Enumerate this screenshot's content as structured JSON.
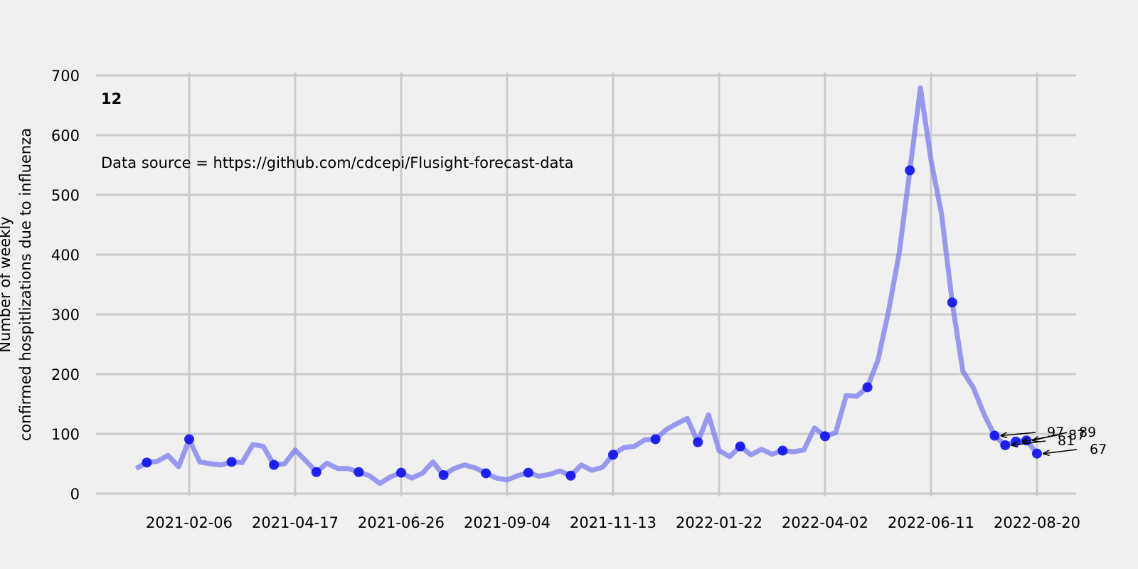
{
  "chart_data": {
    "type": "line",
    "panel_label": "12",
    "annotation": "Data source = https://github.com/cdcepi/Flusight-forecast-data",
    "ylabel_line1": "Number of weekly",
    "ylabel_line2": "confirmed hospitlizations due to influenza",
    "xlabel": "",
    "ylim": [
      0,
      700
    ],
    "yticks": [
      0,
      100,
      200,
      300,
      400,
      500,
      600,
      700
    ],
    "xticks": [
      "2021-02-06",
      "2021-04-17",
      "2021-06-26",
      "2021-09-04",
      "2021-11-13",
      "2022-01-22",
      "2022-04-02",
      "2022-06-11",
      "2022-08-20"
    ],
    "grid": true,
    "colors": {
      "line": "#7b7bf0",
      "marker": "#1010f0",
      "grid": "#cbcbcb",
      "background": "#f0f0f0"
    },
    "series": [
      {
        "values": [
          [
            "2021-01-02",
            42
          ],
          [
            "2021-01-09",
            52
          ],
          [
            "2021-01-16",
            54
          ],
          [
            "2021-01-23",
            64
          ],
          [
            "2021-01-30",
            45
          ],
          [
            "2021-02-06",
            91
          ],
          [
            "2021-02-13",
            53
          ],
          [
            "2021-02-20",
            50
          ],
          [
            "2021-02-27",
            48
          ],
          [
            "2021-03-06",
            53
          ],
          [
            "2021-03-13",
            52
          ],
          [
            "2021-03-20",
            82
          ],
          [
            "2021-03-27",
            79
          ],
          [
            "2021-04-03",
            48
          ],
          [
            "2021-04-10",
            50
          ],
          [
            "2021-04-17",
            73
          ],
          [
            "2021-04-24",
            55
          ],
          [
            "2021-05-01",
            36
          ],
          [
            "2021-05-08",
            51
          ],
          [
            "2021-05-15",
            42
          ],
          [
            "2021-05-22",
            42
          ],
          [
            "2021-05-29",
            36
          ],
          [
            "2021-06-05",
            30
          ],
          [
            "2021-06-12",
            17
          ],
          [
            "2021-06-19",
            28
          ],
          [
            "2021-06-26",
            35
          ],
          [
            "2021-07-03",
            26
          ],
          [
            "2021-07-10",
            34
          ],
          [
            "2021-07-17",
            53
          ],
          [
            "2021-07-24",
            31
          ],
          [
            "2021-07-31",
            42
          ],
          [
            "2021-08-07",
            48
          ],
          [
            "2021-08-14",
            43
          ],
          [
            "2021-08-21",
            34
          ],
          [
            "2021-08-28",
            26
          ],
          [
            "2021-09-04",
            23
          ],
          [
            "2021-09-11",
            30
          ],
          [
            "2021-09-18",
            35
          ],
          [
            "2021-09-25",
            29
          ],
          [
            "2021-10-02",
            32
          ],
          [
            "2021-10-09",
            38
          ],
          [
            "2021-10-16",
            30
          ],
          [
            "2021-10-23",
            48
          ],
          [
            "2021-10-30",
            39
          ],
          [
            "2021-11-06",
            44
          ],
          [
            "2021-11-13",
            65
          ],
          [
            "2021-11-20",
            77
          ],
          [
            "2021-11-27",
            79
          ],
          [
            "2021-12-04",
            90
          ],
          [
            "2021-12-11",
            91
          ],
          [
            "2021-12-18",
            107
          ],
          [
            "2021-12-25",
            117
          ],
          [
            "2022-01-01",
            126
          ],
          [
            "2022-01-08",
            86
          ],
          [
            "2022-01-15",
            132
          ],
          [
            "2022-01-22",
            72
          ],
          [
            "2022-01-29",
            62
          ],
          [
            "2022-02-05",
            79
          ],
          [
            "2022-02-12",
            65
          ],
          [
            "2022-02-19",
            74
          ],
          [
            "2022-02-26",
            66
          ],
          [
            "2022-03-05",
            72
          ],
          [
            "2022-03-12",
            70
          ],
          [
            "2022-03-19",
            73
          ],
          [
            "2022-03-26",
            110
          ],
          [
            "2022-04-02",
            96
          ],
          [
            "2022-04-09",
            102
          ],
          [
            "2022-04-16",
            164
          ],
          [
            "2022-04-23",
            163
          ],
          [
            "2022-04-30",
            178
          ],
          [
            "2022-05-07",
            224
          ],
          [
            "2022-05-14",
            306
          ],
          [
            "2022-05-21",
            403
          ],
          [
            "2022-05-28",
            541
          ],
          [
            "2022-06-04",
            679
          ],
          [
            "2022-06-11",
            558
          ],
          [
            "2022-06-18",
            467
          ],
          [
            "2022-06-25",
            320
          ],
          [
            "2022-07-02",
            205
          ],
          [
            "2022-07-09",
            177
          ],
          [
            "2022-07-16",
            133
          ],
          [
            "2022-07-23",
            97
          ],
          [
            "2022-07-30",
            81
          ],
          [
            "2022-08-06",
            87
          ],
          [
            "2022-08-13",
            89
          ],
          [
            "2022-08-20",
            67
          ]
        ],
        "markers": [
          [
            "2021-01-09",
            52
          ],
          [
            "2021-02-06",
            91
          ],
          [
            "2021-03-06",
            53
          ],
          [
            "2021-04-03",
            48
          ],
          [
            "2021-05-01",
            36
          ],
          [
            "2021-05-29",
            36
          ],
          [
            "2021-06-26",
            35
          ],
          [
            "2021-07-24",
            31
          ],
          [
            "2021-08-21",
            34
          ],
          [
            "2021-09-18",
            35
          ],
          [
            "2021-10-16",
            30
          ],
          [
            "2021-11-13",
            65
          ],
          [
            "2021-12-11",
            91
          ],
          [
            "2022-01-08",
            86
          ],
          [
            "2022-02-05",
            79
          ],
          [
            "2022-03-05",
            72
          ],
          [
            "2022-04-02",
            96
          ],
          [
            "2022-04-30",
            178
          ],
          [
            "2022-05-28",
            541
          ],
          [
            "2022-06-25",
            320
          ],
          [
            "2022-07-23",
            97
          ],
          [
            "2022-07-30",
            81
          ],
          [
            "2022-08-06",
            87
          ],
          [
            "2022-08-13",
            89
          ],
          [
            "2022-08-20",
            67
          ]
        ]
      }
    ],
    "value_labels": [
      {
        "date": "2022-07-23",
        "value": 97,
        "text": "97"
      },
      {
        "date": "2022-07-30",
        "value": 81,
        "text": "81"
      },
      {
        "date": "2022-08-06",
        "value": 87,
        "text": "87"
      },
      {
        "date": "2022-08-13",
        "value": 89,
        "text": "89"
      },
      {
        "date": "2022-08-20",
        "value": 67,
        "text": "67"
      }
    ]
  }
}
